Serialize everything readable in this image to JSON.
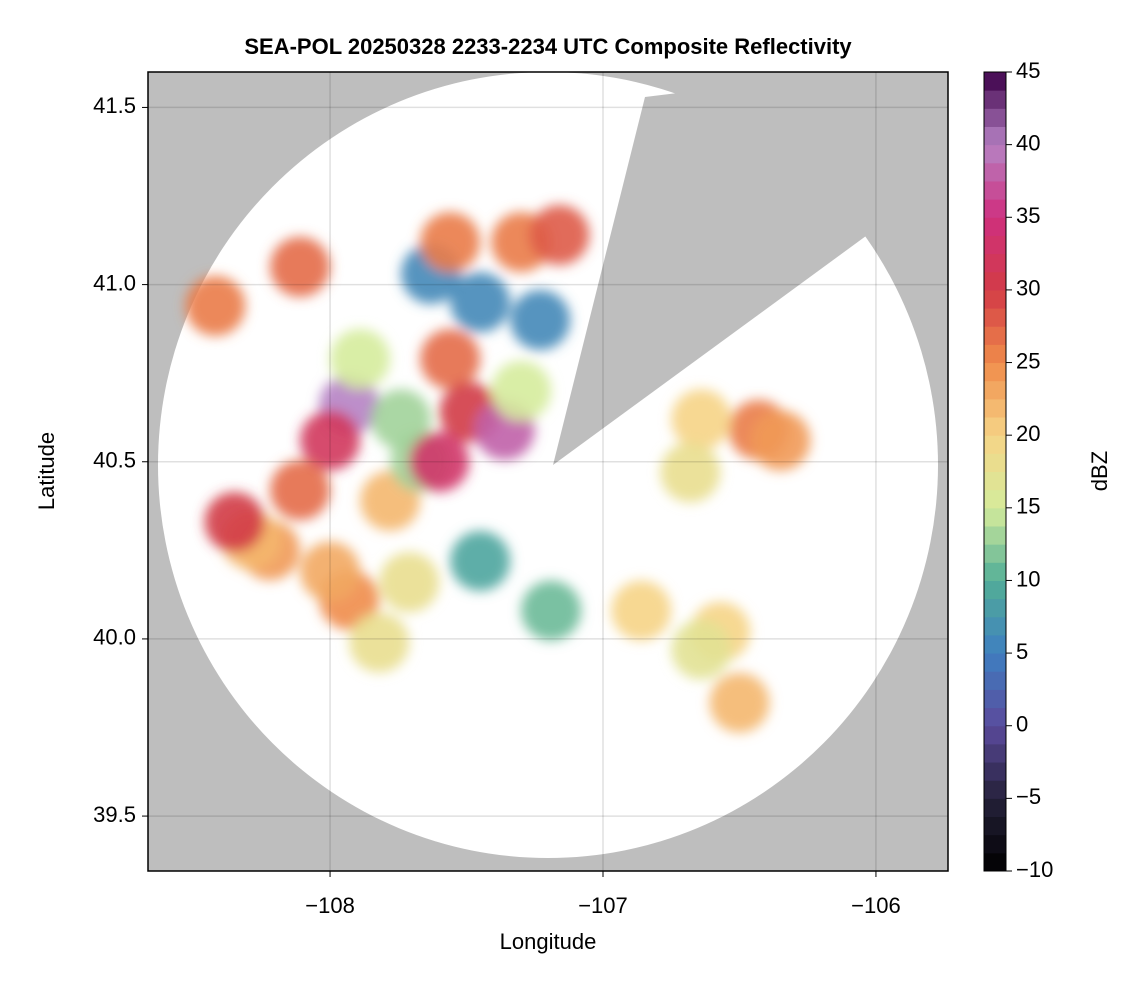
{
  "chart_data": {
    "type": "radar",
    "title": "SEA-POL 20250328 2233-2234 UTC Composite Reflectivity",
    "xlabel": "Longitude",
    "ylabel": "Latitude",
    "colorbar_label": "dBZ",
    "xlim": [
      -108.667,
      -105.736
    ],
    "ylim": [
      39.345,
      41.6
    ],
    "xticks": [
      {
        "value": -108,
        "label": "−108"
      },
      {
        "value": -107,
        "label": "−107"
      },
      {
        "value": -106,
        "label": "−106"
      }
    ],
    "yticks": [
      39.5,
      {
        "value": 40,
        "label": "40.0"
      },
      40.5,
      {
        "value": 41,
        "label": "41.0"
      },
      41.5
    ],
    "clim": [
      -10,
      45
    ],
    "cticks": [
      {
        "value": -10,
        "label": "−10"
      },
      {
        "value": -5,
        "label": "−5"
      },
      0,
      5,
      10,
      15,
      20,
      25,
      30,
      35,
      40,
      45
    ],
    "colormap": [
      "#000000",
      "#25213a",
      "#5b4a9c",
      "#3e7fc0",
      "#52ae97",
      "#d5ec9c",
      "#f6d486",
      "#f08c4a",
      "#d23b46",
      "#cf2f7e",
      "#b682c4",
      "#3c0048"
    ],
    "grid": true,
    "background": "#bebebe",
    "x": [
      -107.93,
      -108.0,
      -108.11,
      -108.22,
      -107.78,
      -107.67,
      -107.74,
      -107.89,
      -107.56,
      -107.49,
      -107.6,
      -107.45,
      -107.23,
      -107.63,
      -108.11,
      -107.56,
      -107.3,
      -107.16,
      -107.45,
      -107.93,
      -107.82,
      -108.29,
      -106.43,
      -106.64,
      -106.68,
      -106.57,
      -106.86,
      -107.19,
      -106.5,
      -106.64,
      -106.35,
      -107.36,
      -108.42,
      -108.35,
      -108.0,
      -107.71,
      -107.3
    ],
    "y": [
      40.66,
      40.56,
      40.42,
      40.25,
      40.39,
      40.5,
      40.62,
      40.79,
      40.79,
      40.64,
      40.5,
      40.95,
      40.9,
      41.03,
      41.05,
      41.12,
      41.12,
      41.14,
      40.22,
      40.11,
      39.99,
      40.28,
      40.59,
      40.62,
      40.47,
      40.02,
      40.08,
      40.08,
      39.82,
      39.97,
      40.56,
      40.59,
      40.94,
      40.33,
      40.19,
      40.16,
      40.7
    ],
    "values": [
      40,
      32,
      27,
      24,
      22,
      13,
      13,
      15,
      27,
      30,
      33,
      6,
      6,
      6,
      27,
      26,
      26,
      28,
      9,
      25,
      18,
      22,
      26,
      20,
      18,
      20,
      20,
      11,
      22,
      17,
      24,
      38,
      26,
      30,
      23,
      18,
      15
    ]
  }
}
